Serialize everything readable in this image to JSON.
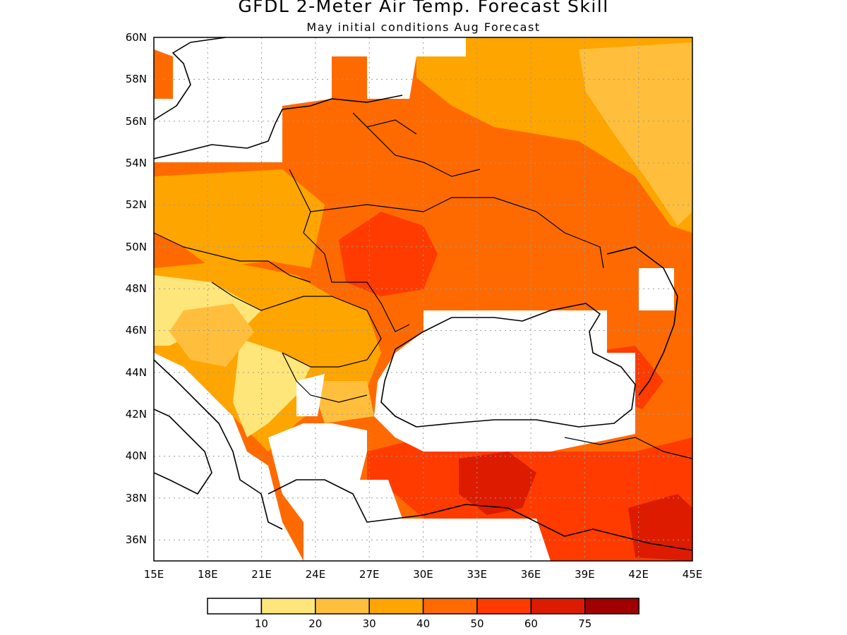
{
  "header": {
    "title": "GFDL 2-Meter Air Temp. Forecast Skill",
    "subtitle": "May initial conditions  Aug Forecast"
  },
  "map": {
    "lon_range": [
      15,
      45
    ],
    "lat_range": [
      35,
      60
    ],
    "lat_labels": [
      "36N",
      "38N",
      "40N",
      "42N",
      "44N",
      "46N",
      "48N",
      "50N",
      "52N",
      "54N",
      "56N",
      "58N",
      "60N"
    ],
    "lon_labels": [
      "15E",
      "18E",
      "21E",
      "24E",
      "27E",
      "30E",
      "33E",
      "36E",
      "39E",
      "42E",
      "45E"
    ],
    "grid": true,
    "colors": {
      "lt10": "#ffffff",
      "c10_20": "#ffe67a",
      "c20_30": "#ffbf3c",
      "c30_40": "#ffa500",
      "c40_50": "#ff6a00",
      "c50_60": "#ff3b00",
      "c60_75": "#dd1b00",
      "c75_up": "#a00000"
    }
  },
  "colorbar": {
    "labels": [
      "10",
      "20",
      "30",
      "40",
      "50",
      "60",
      "75"
    ],
    "colors": [
      "#ffffff",
      "#ffe67a",
      "#ffbf3c",
      "#ffa500",
      "#ff6a00",
      "#ff3b00",
      "#dd1b00",
      "#a00000"
    ]
  }
}
